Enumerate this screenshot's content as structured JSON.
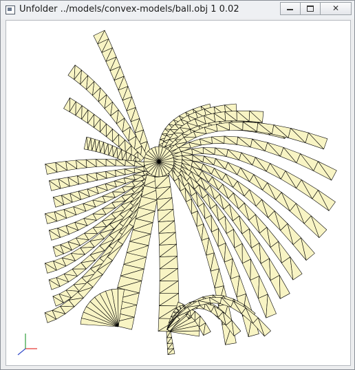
{
  "window": {
    "title": "Unfolder ../models/convex-models/ball.obj 1 0.02",
    "controls": {
      "minimize": "",
      "maximize": "",
      "close": "✕"
    }
  },
  "colors": {
    "face_fill": "#f8f4c4",
    "edge": "#000000",
    "axis_x": "#e53935",
    "axis_y": "#2e9e3a",
    "axis_z": "#2f48c8"
  }
}
